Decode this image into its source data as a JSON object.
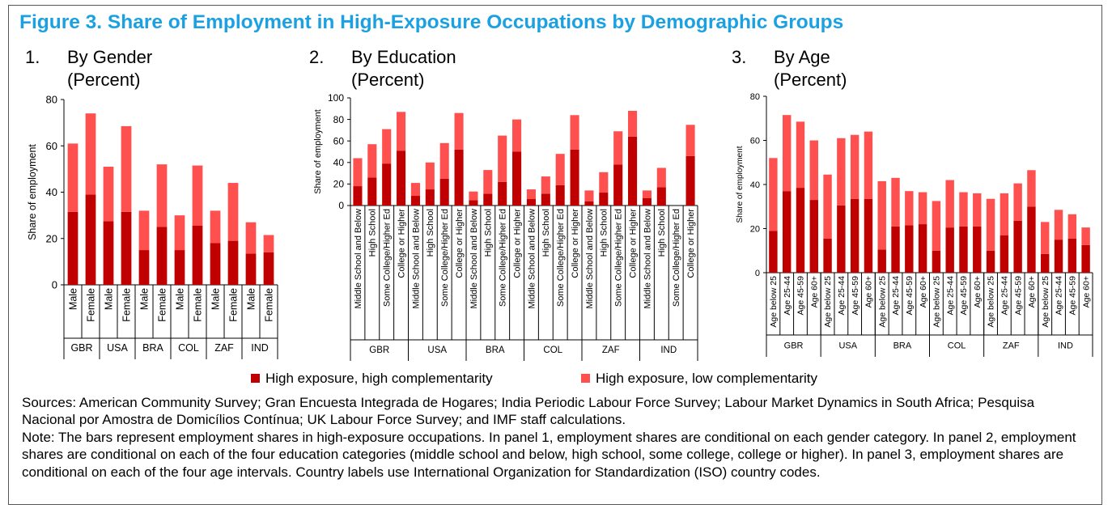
{
  "figure": {
    "title": "Figure 3. Share of Employment in High-Exposure Occupations by Demographic Groups"
  },
  "colors": {
    "high_comp": "#c00000",
    "low_comp": "#ff5050",
    "axis": "#000000"
  },
  "legend": {
    "high_comp": "High exposure, high complementarity",
    "low_comp": "High exposure, low complementarity"
  },
  "sources": "Sources: American Community Survey; Gran Encuesta Integrada de Hogares; India Periodic Labour Force Survey; Labour Market Dynamics in South Africa; Pesquisa Nacional por Amostra de Domicílios Contínua; UK Labour Force Survey; and IMF staff calculations.",
  "note": "Note: The bars represent employment shares in high-exposure occupations. In panel 1, employment shares are conditional on each gender category. In panel 2, employment shares are conditional on each of the four education categories (middle school and below, high school, some college, college or higher). In panel 3, employment shares are conditional on each of the four age intervals. Country labels use International Organization for Standardization (ISO) country codes.",
  "panels": [
    {
      "number": "1.",
      "label": "By Gender",
      "unit": "(Percent)"
    },
    {
      "number": "2.",
      "label": "By Education",
      "unit": "(Percent)"
    },
    {
      "number": "3.",
      "label": "By Age",
      "unit": "(Percent)"
    }
  ],
  "chart_data": [
    {
      "type": "bar",
      "stacked": true,
      "title": "By Gender",
      "ylabel": "Share of employment",
      "ylim": [
        0,
        80
      ],
      "yticks": [
        0,
        20,
        40,
        60,
        80
      ],
      "groups": [
        "GBR",
        "USA",
        "BRA",
        "COL",
        "ZAF",
        "IND"
      ],
      "categories": [
        "Male",
        "Female"
      ],
      "series": [
        {
          "name": "High exposure, high complementarity",
          "color": "#c00000",
          "values": [
            [
              31.5,
              39
            ],
            [
              27.5,
              31.5
            ],
            [
              15,
              25
            ],
            [
              15,
              25.5
            ],
            [
              18,
              19
            ],
            [
              13.5,
              14
            ]
          ]
        },
        {
          "name": "High exposure, low complementarity",
          "color": "#ff5050",
          "values": [
            [
              29.5,
              35
            ],
            [
              23.5,
              37
            ],
            [
              17,
              27
            ],
            [
              15,
              26
            ],
            [
              14,
              25
            ],
            [
              13.5,
              7.5
            ]
          ]
        }
      ]
    },
    {
      "type": "bar",
      "stacked": true,
      "title": "By Education",
      "ylabel": "Share of employment",
      "ylim": [
        0,
        100
      ],
      "yticks": [
        0,
        20,
        40,
        60,
        80,
        100
      ],
      "groups": [
        "GBR",
        "USA",
        "BRA",
        "COL",
        "ZAF",
        "IND"
      ],
      "categories": [
        "Middle School and Below",
        "High School",
        "Some College/Higher Ed",
        "College or Higher"
      ],
      "series": [
        {
          "name": "High exposure, high complementarity",
          "color": "#c00000",
          "values": [
            [
              18,
              26,
              39,
              51
            ],
            [
              9,
              15,
              25,
              52
            ],
            [
              5,
              11,
              22,
              50
            ],
            [
              6,
              11,
              19,
              52
            ],
            [
              4,
              12,
              38,
              64
            ],
            [
              7,
              17,
              0,
              46
            ]
          ]
        },
        {
          "name": "High exposure, low complementarity",
          "color": "#ff5050",
          "values": [
            [
              26,
              31,
              32,
              36
            ],
            [
              12,
              25,
              33,
              34
            ],
            [
              8,
              22,
              43,
              30
            ],
            [
              9,
              16,
              29,
              32
            ],
            [
              10,
              19,
              31,
              24
            ],
            [
              7,
              18,
              0,
              29
            ]
          ]
        }
      ]
    },
    {
      "type": "bar",
      "stacked": true,
      "title": "By Age",
      "ylabel": "Share of employment",
      "ylim": [
        0,
        80
      ],
      "yticks": [
        0,
        20,
        40,
        60,
        80
      ],
      "groups": [
        "GBR",
        "USA",
        "BRA",
        "COL",
        "ZAF",
        "IND"
      ],
      "categories": [
        "Age below 25",
        "Age 25-44",
        "Age 45-59",
        "Age 60+"
      ],
      "series": [
        {
          "name": "High exposure, high complementarity",
          "color": "#c00000",
          "values": [
            [
              19,
              37,
              38.5,
              33
            ],
            [
              15.5,
              30.5,
              33.5,
              33.5
            ],
            [
              10.5,
              21,
              21.5,
              22
            ],
            [
              10,
              20.5,
              21,
              21
            ],
            [
              10,
              17,
              23.5,
              30
            ],
            [
              8.5,
              15,
              15.5,
              12.5
            ]
          ]
        },
        {
          "name": "High exposure, low complementarity",
          "color": "#ff5050",
          "values": [
            [
              33,
              34.5,
              30,
              27
            ],
            [
              29,
              30.5,
              29,
              30.5
            ],
            [
              31,
              22,
              15.5,
              14.5
            ],
            [
              22.5,
              21.5,
              15.5,
              15
            ],
            [
              23.5,
              19,
              17,
              16.5
            ],
            [
              14.5,
              13.5,
              11,
              8
            ]
          ]
        }
      ]
    }
  ]
}
